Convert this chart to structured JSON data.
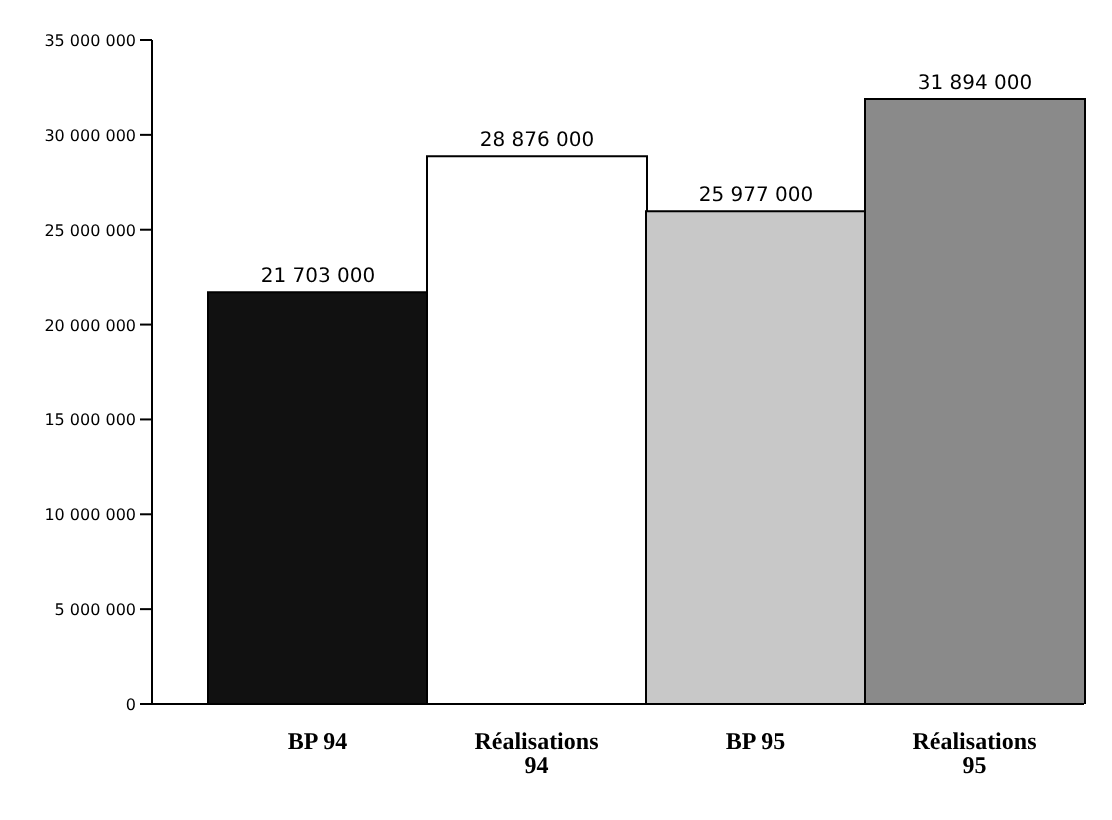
{
  "chart_data": {
    "type": "bar",
    "categories": [
      "BP 94",
      "Réalisations 94",
      "BP 95",
      "Réalisations 95"
    ],
    "values": [
      21703000,
      28876000,
      25977000,
      31894000
    ],
    "colors": [
      "#111111",
      "#ffffff",
      "#c8c8c8",
      "#8a8a8a"
    ],
    "value_labels": [
      "21 703 000",
      "28 876 000",
      "25 977 000",
      "31 894 000"
    ],
    "ylim": [
      0,
      35000000
    ],
    "yticks": [
      {
        "value": 0,
        "label": "0"
      },
      {
        "value": 5000000,
        "label": "5 000 000"
      },
      {
        "value": 10000000,
        "label": "10 000 000"
      },
      {
        "value": 15000000,
        "label": "15 000 000"
      },
      {
        "value": 20000000,
        "label": "20 000 000"
      },
      {
        "value": 25000000,
        "label": "25 000 000"
      },
      {
        "value": 30000000,
        "label": "30 000 000"
      },
      {
        "value": 35000000,
        "label": "35 000 000"
      }
    ],
    "grid": false
  }
}
